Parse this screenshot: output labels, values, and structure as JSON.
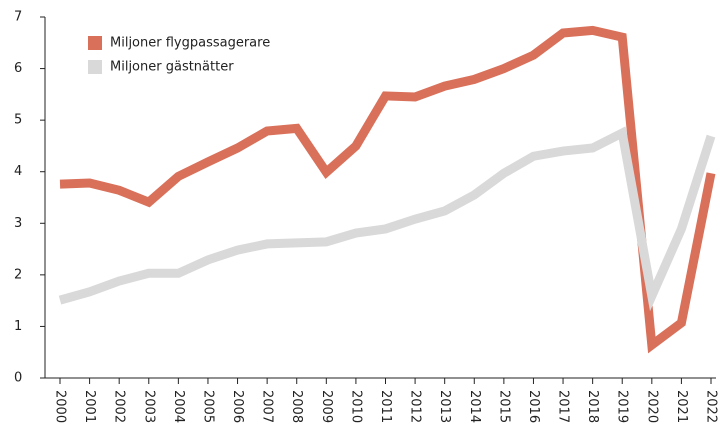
{
  "chart_data": {
    "type": "line",
    "x": [
      "2000",
      "2001",
      "2002",
      "2003",
      "2004",
      "2005",
      "2006",
      "2007",
      "2008",
      "2009",
      "2010",
      "2011",
      "2012",
      "2013",
      "2014",
      "2015",
      "2016",
      "2017",
      "2018",
      "2019",
      "2020",
      "2021",
      "2022"
    ],
    "series": [
      {
        "name": "Miljoner flygpassagerare",
        "color": "#d9705a",
        "values": [
          3.76,
          3.78,
          3.64,
          3.41,
          3.91,
          4.19,
          4.46,
          4.79,
          4.84,
          3.99,
          4.5,
          5.47,
          5.45,
          5.66,
          5.79,
          6.0,
          6.26,
          6.69,
          6.74,
          6.61,
          0.64,
          1.07,
          3.97
        ]
      },
      {
        "name": "Miljoner gästnätter",
        "color": "#d9d9d9",
        "values": [
          1.51,
          1.67,
          1.88,
          2.03,
          2.03,
          2.29,
          2.48,
          2.6,
          2.62,
          2.64,
          2.81,
          2.89,
          3.08,
          3.24,
          3.55,
          3.97,
          4.3,
          4.4,
          4.46,
          4.75,
          1.59,
          2.89,
          4.69
        ]
      }
    ],
    "ylim": [
      0,
      7
    ],
    "yticks": [
      0,
      1,
      2,
      3,
      4,
      5,
      6,
      7
    ],
    "legend": "top-left"
  }
}
